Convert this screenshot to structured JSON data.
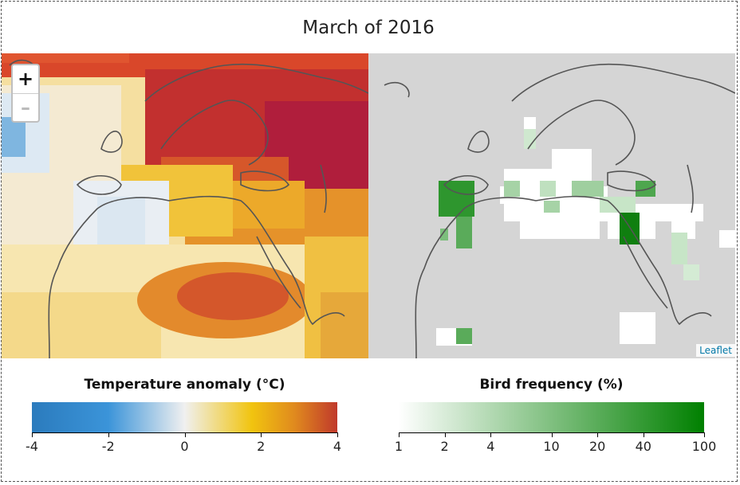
{
  "title": "March of 2016",
  "zoom": {
    "in_label": "+",
    "out_label": "–"
  },
  "attribution": "Leaflet",
  "legend_temperature": {
    "title": "Temperature anomaly (°C)",
    "ticks": [
      "-4",
      "-2",
      "0",
      "2",
      "4"
    ],
    "colors": [
      "#2b7bbd",
      "#3b94d9",
      "#f0f0f0",
      "#f1c40f",
      "#e08a1e",
      "#c0392b"
    ]
  },
  "legend_bird": {
    "title": "Bird frequency (%)",
    "ticks": [
      "1",
      "2",
      "4",
      "10",
      "20",
      "40",
      "100"
    ],
    "colors": [
      "#ffffff",
      "#008000"
    ]
  }
}
